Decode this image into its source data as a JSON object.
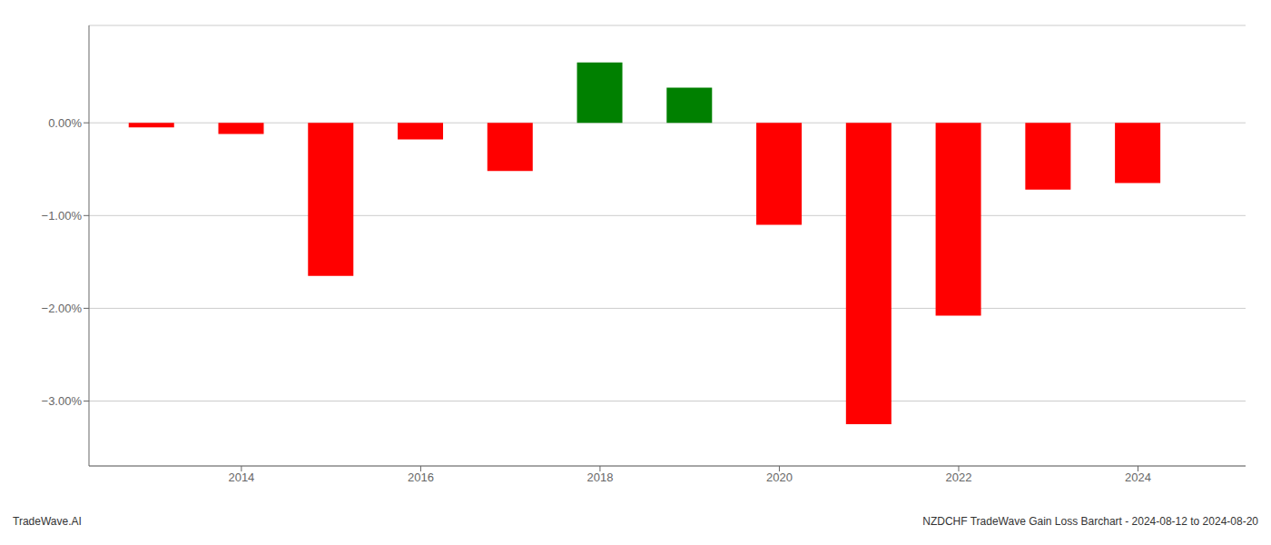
{
  "chart_data": {
    "type": "bar",
    "x": [
      2013,
      2014,
      2015,
      2016,
      2017,
      2018,
      2019,
      2020,
      2021,
      2022,
      2023,
      2024
    ],
    "values": [
      -0.05,
      -0.12,
      -1.65,
      -0.18,
      -0.52,
      0.65,
      0.38,
      -1.1,
      -3.25,
      -2.08,
      -0.72,
      -0.65
    ],
    "colors": [
      "#ff0000",
      "#ff0000",
      "#ff0000",
      "#ff0000",
      "#ff0000",
      "#008000",
      "#008000",
      "#ff0000",
      "#ff0000",
      "#ff0000",
      "#ff0000",
      "#ff0000"
    ],
    "xlim": [
      2012.3,
      2025.2
    ],
    "xticks": [
      2014,
      2016,
      2018,
      2020,
      2022,
      2024
    ],
    "ylim": [
      -3.7,
      1.05
    ],
    "yticks": [
      {
        "value": 0.0,
        "label": "0.00%"
      },
      {
        "value": -1.0,
        "label": "−1.00%"
      },
      {
        "value": -2.0,
        "label": "−2.00%"
      },
      {
        "value": -3.0,
        "label": "−3.00%"
      }
    ],
    "grid": true,
    "annotations": [
      "TradeWave.AI",
      "NZDCHF TradeWave Gain Loss Barchart - 2024-08-12 to 2024-08-20"
    ]
  }
}
